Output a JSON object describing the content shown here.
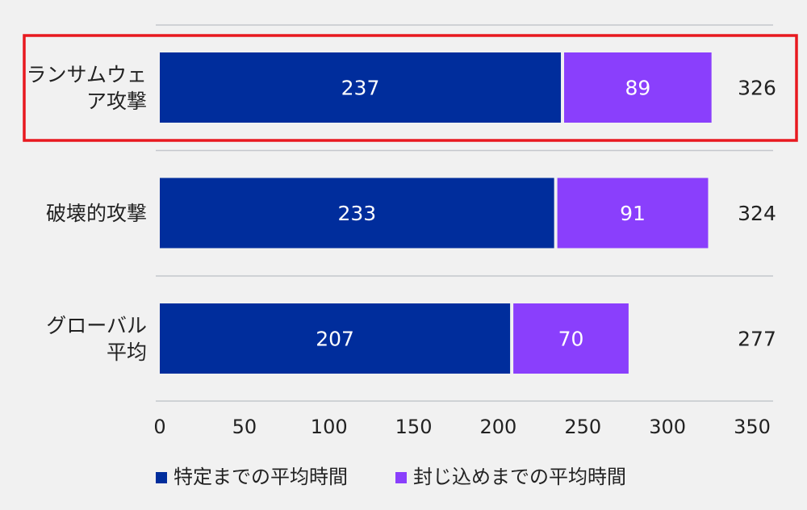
{
  "chart_data": {
    "type": "bar",
    "orientation": "horizontal",
    "stacked": true,
    "categories": [
      [
        "ランサムウェ",
        "ア攻撃"
      ],
      [
        "破壊的攻撃"
      ],
      [
        "グローバル",
        "平均"
      ]
    ],
    "series": [
      {
        "name": "特定までの平均時間",
        "color": "#002d9c",
        "values": [
          237,
          233,
          207
        ]
      },
      {
        "name": "封じ込めまでの平均時間",
        "color": "#8a3ffc",
        "values": [
          89,
          91,
          70
        ]
      }
    ],
    "totals": [
      326,
      324,
      277
    ],
    "xlim": [
      0,
      350
    ],
    "xticks": [
      0,
      50,
      100,
      150,
      200,
      250,
      300,
      350
    ],
    "highlight_category": 0,
    "highlight_color": "#e8191f",
    "legend_position": "bottom-left",
    "grid": false
  }
}
